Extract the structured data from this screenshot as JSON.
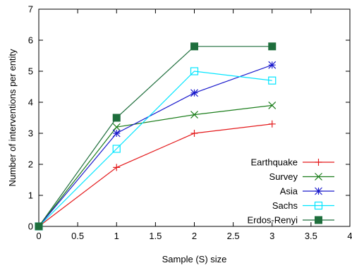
{
  "chart_data": {
    "type": "line",
    "xlabel": "Sample (S) size",
    "ylabel": "Number of interventions per entity",
    "xlim": [
      0,
      4
    ],
    "ylim": [
      0,
      7
    ],
    "xticks": [
      0,
      0.5,
      1,
      1.5,
      2,
      2.5,
      3,
      3.5,
      4
    ],
    "yticks": [
      0,
      1,
      2,
      3,
      4,
      5,
      6,
      7
    ],
    "x": [
      0,
      1,
      2,
      3
    ],
    "grid": false,
    "legend_position": "bottom-right",
    "series": [
      {
        "name": "Earthquake",
        "color": "#e41a1c",
        "marker": "plus",
        "values": [
          0,
          1.9,
          3.0,
          3.3
        ]
      },
      {
        "name": "Survey",
        "color": "#1b7d1b",
        "marker": "cross",
        "values": [
          0,
          3.2,
          3.6,
          3.9
        ]
      },
      {
        "name": "Asia",
        "color": "#1a1acc",
        "marker": "star",
        "values": [
          0,
          3.0,
          4.3,
          5.2
        ]
      },
      {
        "name": "Sachs",
        "color": "#00e5ff",
        "marker": "open-square",
        "values": [
          0,
          2.5,
          5.0,
          4.7
        ]
      },
      {
        "name": "Erdos-Renyi",
        "color": "#1e6e3c",
        "marker": "filled-square",
        "values": [
          0,
          3.5,
          5.8,
          5.8
        ]
      }
    ]
  }
}
